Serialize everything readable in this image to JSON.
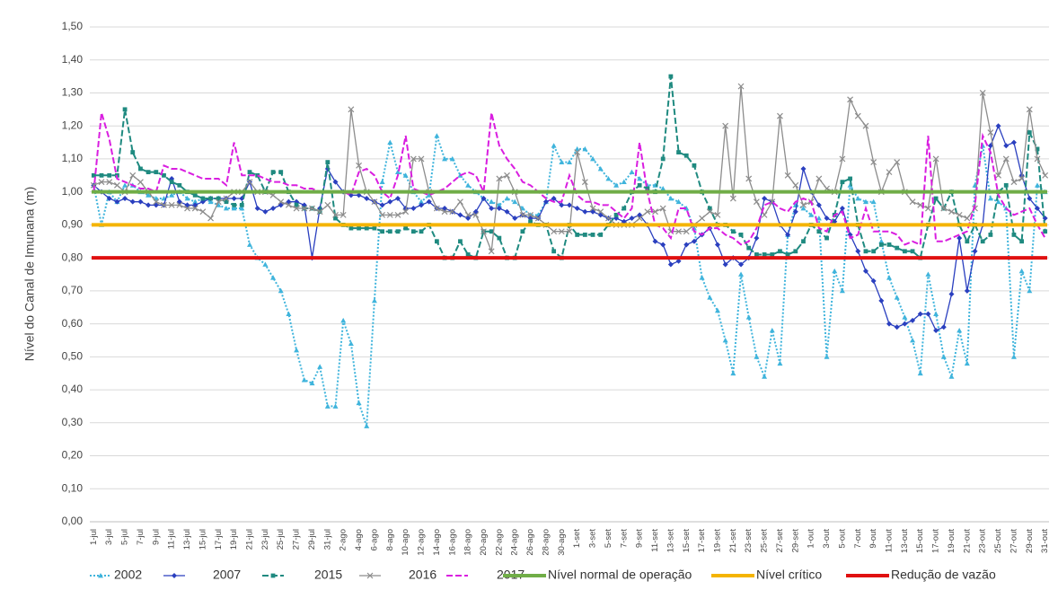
{
  "chart_data": {
    "type": "line",
    "y_label": "Nível do Canal de Imunana (m)",
    "categories": [
      "1-jul",
      null,
      "3-jul",
      null,
      "5-jul",
      null,
      "7-jul",
      null,
      "9-jul",
      null,
      "11-jul",
      null,
      "13-jul",
      null,
      "15-jul",
      null,
      "17-jul",
      null,
      "19-jul",
      null,
      "21-jul",
      null,
      "23-jul",
      null,
      "25-jul",
      null,
      "27-jul",
      null,
      "29-jul",
      null,
      "31-jul",
      null,
      "2-ago",
      null,
      "4-ago",
      null,
      "6-ago",
      null,
      "8-ago",
      null,
      "10-ago",
      null,
      "12-ago",
      null,
      "14-ago",
      null,
      "16-ago",
      null,
      "18-ago",
      null,
      "20-ago",
      null,
      "22-ago",
      null,
      "24-ago",
      null,
      "26-ago",
      null,
      "28-ago",
      null,
      "30-ago",
      null,
      "1-set",
      null,
      "3-set",
      null,
      "5-set",
      null,
      "7-set",
      null,
      "9-set",
      null,
      "11-set",
      null,
      "13-set",
      null,
      "15-set",
      null,
      "17-set",
      null,
      "19-set",
      null,
      "21-set",
      null,
      "23-set",
      null,
      "25-set",
      null,
      "27-set",
      null,
      "29-set",
      null,
      "1-out",
      null,
      "3-out",
      null,
      "5-out",
      null,
      "7-out",
      null,
      "9-out",
      null,
      "11-out",
      null,
      "13-out",
      null,
      "15-out",
      null,
      "17-out",
      null,
      "19-out",
      null,
      "21-out",
      null,
      "23-out",
      null,
      "25-out",
      null,
      "27-out",
      null,
      "29-out",
      null,
      "31-out"
    ],
    "series": [
      {
        "name": "2002",
        "color": "#3fb4dc",
        "style": "dotted",
        "marker": "triangle",
        "values": [
          1.02,
          0.9,
          1.0,
          0.97,
          1.02,
          1.02,
          1.0,
          0.99,
          0.98,
          0.98,
          0.99,
          1.0,
          0.98,
          0.97,
          0.98,
          0.97,
          0.96,
          0.95,
          0.95,
          0.95,
          0.84,
          0.8,
          0.78,
          0.74,
          0.7,
          0.63,
          0.52,
          0.43,
          0.42,
          0.47,
          0.35,
          0.35,
          0.61,
          0.54,
          0.36,
          0.29,
          0.67,
          1.03,
          1.15,
          1.06,
          1.05,
          1.0,
          0.97,
          0.99,
          1.17,
          1.1,
          1.1,
          1.05,
          1.02,
          1.0,
          0.98,
          0.97,
          0.96,
          0.98,
          0.97,
          0.95,
          0.93,
          0.93,
          0.97,
          1.14,
          1.09,
          1.09,
          1.13,
          1.13,
          1.1,
          1.07,
          1.04,
          1.02,
          1.03,
          1.06,
          1.04,
          1.02,
          1.02,
          1.01,
          0.98,
          0.97,
          0.95,
          0.89,
          0.74,
          0.68,
          0.64,
          0.55,
          0.45,
          0.75,
          0.62,
          0.5,
          0.44,
          0.58,
          0.48,
          0.87,
          0.96,
          0.95,
          0.93,
          0.92,
          0.5,
          0.76,
          0.7,
          1.02,
          0.98,
          0.97,
          0.97,
          0.85,
          0.74,
          0.68,
          0.62,
          0.55,
          0.45,
          0.75,
          0.63,
          0.5,
          0.44,
          0.58,
          0.48,
          1.02,
          1.14,
          0.98,
          0.97,
          0.95,
          0.5,
          0.76,
          0.7,
          1.02,
          1.0
        ]
      },
      {
        "name": "2007",
        "color": "#2a3fbf",
        "style": "solid",
        "marker": "diamond",
        "values": [
          1.02,
          1.0,
          0.98,
          0.97,
          0.98,
          0.97,
          0.97,
          0.96,
          0.96,
          0.96,
          1.04,
          0.97,
          0.96,
          0.96,
          0.97,
          0.98,
          0.98,
          0.98,
          0.98,
          0.98,
          1.03,
          0.95,
          0.94,
          0.95,
          0.96,
          0.97,
          0.97,
          0.96,
          0.8,
          0.95,
          1.07,
          1.03,
          1.0,
          0.99,
          0.99,
          0.98,
          0.97,
          0.96,
          0.97,
          0.98,
          0.95,
          0.95,
          0.96,
          0.97,
          0.95,
          0.95,
          0.94,
          0.93,
          0.92,
          0.94,
          0.98,
          0.95,
          0.95,
          0.94,
          0.92,
          0.93,
          0.92,
          0.92,
          0.97,
          0.98,
          0.96,
          0.96,
          0.95,
          0.94,
          0.94,
          0.93,
          0.92,
          0.92,
          0.91,
          0.92,
          0.93,
          0.9,
          0.85,
          0.84,
          0.78,
          0.79,
          0.84,
          0.85,
          0.87,
          0.89,
          0.84,
          0.78,
          0.8,
          0.78,
          0.8,
          0.86,
          0.98,
          0.97,
          0.9,
          0.87,
          0.94,
          1.07,
          1.0,
          0.96,
          0.92,
          0.91,
          0.95,
          0.87,
          0.82,
          0.76,
          0.73,
          0.67,
          0.6,
          0.59,
          0.6,
          0.61,
          0.63,
          0.63,
          0.58,
          0.59,
          0.69,
          0.86,
          0.7,
          0.82,
          0.9,
          1.14,
          1.2,
          1.14,
          1.15,
          1.05,
          0.98,
          0.95,
          0.92
        ]
      },
      {
        "name": "2015",
        "color": "#1f8a80",
        "style": "dashed",
        "marker": "square",
        "values": [
          1.05,
          1.05,
          1.05,
          1.05,
          1.25,
          1.12,
          1.07,
          1.06,
          1.06,
          1.05,
          1.03,
          1.02,
          1.0,
          0.99,
          0.98,
          0.98,
          0.98,
          0.97,
          0.96,
          0.96,
          1.06,
          1.05,
          1.0,
          1.06,
          1.06,
          1.0,
          0.96,
          0.95,
          0.95,
          0.94,
          1.09,
          0.92,
          0.9,
          0.89,
          0.89,
          0.89,
          0.89,
          0.88,
          0.88,
          0.88,
          0.89,
          0.88,
          0.88,
          0.9,
          0.85,
          0.8,
          0.8,
          0.85,
          0.81,
          0.8,
          0.88,
          0.88,
          0.86,
          0.8,
          0.8,
          0.88,
          0.91,
          0.9,
          0.9,
          0.82,
          0.8,
          0.9,
          0.87,
          0.87,
          0.87,
          0.87,
          0.9,
          0.93,
          0.95,
          1.0,
          1.02,
          1.01,
          1.0,
          1.1,
          1.35,
          1.12,
          1.11,
          1.08,
          1.0,
          0.95,
          0.9,
          0.9,
          0.88,
          0.87,
          0.83,
          0.81,
          0.81,
          0.81,
          0.82,
          0.81,
          0.82,
          0.85,
          0.9,
          0.88,
          0.86,
          0.93,
          1.03,
          1.04,
          0.9,
          0.82,
          0.82,
          0.84,
          0.84,
          0.83,
          0.82,
          0.82,
          0.8,
          0.9,
          0.98,
          0.95,
          1.0,
          0.9,
          0.85,
          0.9,
          0.85,
          0.87,
          1.0,
          1.02,
          0.87,
          0.85,
          1.18,
          1.13,
          0.88
        ]
      },
      {
        "name": "2016",
        "color": "#8c8c8c",
        "style": "solid",
        "marker": "x",
        "values": [
          1.02,
          1.03,
          1.03,
          1.02,
          1.0,
          1.05,
          1.03,
          1.0,
          0.97,
          0.96,
          0.96,
          0.96,
          0.95,
          0.95,
          0.94,
          0.92,
          0.97,
          0.98,
          1.0,
          1.0,
          1.03,
          1.0,
          1.0,
          0.99,
          0.97,
          0.96,
          0.95,
          0.95,
          0.95,
          0.94,
          0.96,
          0.93,
          0.93,
          1.25,
          1.08,
          1.0,
          0.97,
          0.93,
          0.93,
          0.93,
          0.94,
          1.1,
          1.1,
          1.0,
          0.95,
          0.94,
          0.94,
          0.97,
          0.93,
          0.93,
          0.88,
          0.82,
          1.04,
          1.05,
          1.0,
          0.93,
          0.93,
          0.92,
          0.9,
          0.88,
          0.88,
          0.88,
          1.12,
          1.03,
          0.95,
          0.94,
          0.92,
          0.9,
          0.9,
          0.9,
          0.92,
          0.94,
          0.94,
          0.95,
          0.88,
          0.88,
          0.88,
          0.9,
          0.92,
          0.94,
          0.93,
          1.2,
          0.98,
          1.32,
          1.04,
          0.97,
          0.93,
          0.97,
          1.23,
          1.05,
          1.02,
          0.96,
          0.97,
          1.04,
          1.01,
          1.0,
          1.1,
          1.28,
          1.23,
          1.2,
          1.09,
          1.0,
          1.06,
          1.09,
          1.0,
          0.97,
          0.96,
          0.95,
          1.1,
          0.95,
          0.94,
          0.93,
          0.92,
          0.95,
          1.3,
          1.18,
          1.05,
          1.1,
          1.03,
          1.04,
          1.25,
          1.1,
          1.05
        ]
      },
      {
        "name": "2017",
        "color": "#d91ee0",
        "style": "dashed",
        "marker": "none",
        "values": [
          1.0,
          1.24,
          1.16,
          1.04,
          1.03,
          1.02,
          1.01,
          1.01,
          1.0,
          1.08,
          1.07,
          1.07,
          1.06,
          1.05,
          1.04,
          1.04,
          1.04,
          1.02,
          1.15,
          1.05,
          1.05,
          1.05,
          1.04,
          1.03,
          1.03,
          1.02,
          1.02,
          1.01,
          1.01,
          1.0,
          1.0,
          1.0,
          1.0,
          0.99,
          1.06,
          1.07,
          1.05,
          1.0,
          0.98,
          1.05,
          1.17,
          1.01,
          1.0,
          0.99,
          1.0,
          1.01,
          1.03,
          1.05,
          1.06,
          1.05,
          1.0,
          1.24,
          1.14,
          1.1,
          1.07,
          1.03,
          1.02,
          1.0,
          0.98,
          0.97,
          0.97,
          1.05,
          0.99,
          0.97,
          0.97,
          0.96,
          0.96,
          0.94,
          0.92,
          0.95,
          1.15,
          1.0,
          0.9,
          0.89,
          0.86,
          0.95,
          0.95,
          0.88,
          0.87,
          0.89,
          0.89,
          0.87,
          0.86,
          0.84,
          0.85,
          0.89,
          0.96,
          0.97,
          0.95,
          0.94,
          0.97,
          0.98,
          0.97,
          0.89,
          0.88,
          0.93,
          0.94,
          0.86,
          0.87,
          0.95,
          0.88,
          0.88,
          0.88,
          0.87,
          0.84,
          0.85,
          0.84,
          1.17,
          0.85,
          0.85,
          0.86,
          0.87,
          0.88,
          0.96,
          1.17,
          1.12,
          0.99,
          0.95,
          0.93,
          0.94,
          0.95,
          0.9,
          0.86
        ]
      }
    ],
    "reference_lines": [
      {
        "name": "Nível normal de operação",
        "color": "#70ad47",
        "value": 1.0
      },
      {
        "name": "Nível crítico",
        "color": "#f4b400",
        "value": 0.9
      },
      {
        "name": "Redução de vazão",
        "color": "#e01010",
        "value": 0.8
      }
    ],
    "ylim": [
      0,
      1.5
    ],
    "yticks": [
      {
        "value": 0,
        "label": "0,00"
      },
      {
        "value": 0.1,
        "label": "0,10"
      },
      {
        "value": 0.2,
        "label": "0,20"
      },
      {
        "value": 0.3,
        "label": "0,30"
      },
      {
        "value": 0.4,
        "label": "0,40"
      },
      {
        "value": 0.5,
        "label": "0,50"
      },
      {
        "value": 0.6,
        "label": "0,60"
      },
      {
        "value": 0.7,
        "label": "0,70"
      },
      {
        "value": 0.8,
        "label": "0,80"
      },
      {
        "value": 0.9,
        "label": "0,90"
      },
      {
        "value": 1.0,
        "label": "1,00"
      },
      {
        "value": 1.1,
        "label": "1,10"
      },
      {
        "value": 1.2,
        "label": "1,20"
      },
      {
        "value": 1.3,
        "label": "1,30"
      },
      {
        "value": 1.4,
        "label": "1,40"
      },
      {
        "value": 1.5,
        "label": "1,50"
      }
    ],
    "grid": true,
    "legend": "bottom"
  }
}
